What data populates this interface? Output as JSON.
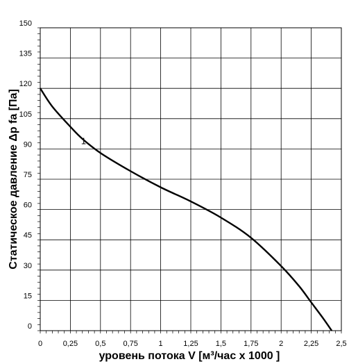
{
  "chart_data": {
    "type": "line",
    "title": "",
    "xlabel": "уровень потока  V [м³/час x 1000 ]",
    "ylabel": "Статическое давление  Δp fa [Па]",
    "xlim": [
      0,
      2.5
    ],
    "ylim": [
      0,
      150
    ],
    "x_ticks": [
      0,
      0.25,
      0.5,
      0.75,
      1,
      1.25,
      1.5,
      1.75,
      2,
      2.25,
      2.5
    ],
    "x_tick_labels": [
      "0",
      "0,25",
      "0,5",
      "0,75",
      "1",
      "1,25",
      "1,5",
      "1,75",
      "2",
      "2,25",
      "2,5"
    ],
    "y_ticks": [
      0,
      15,
      30,
      45,
      60,
      75,
      90,
      105,
      120,
      135,
      150
    ],
    "y_tick_labels": [
      "0",
      "15",
      "30",
      "45",
      "60",
      "75",
      "90",
      "105",
      "120",
      "135",
      "150"
    ],
    "x_minor_step": 0.05,
    "y_minor_step": 3,
    "grid": true,
    "series": [
      {
        "name": "1",
        "color": "#000000",
        "x": [
          0,
          0.1,
          0.25,
          0.35,
          0.5,
          0.75,
          1,
          1.25,
          1.5,
          1.75,
          2,
          2.15,
          2.25,
          2.35,
          2.42
        ],
        "y": [
          120,
          111,
          101,
          95,
          88,
          79,
          71,
          64,
          56,
          46,
          32,
          22,
          14,
          6,
          0
        ]
      }
    ],
    "curve_label": {
      "text": "1",
      "x": 0.42,
      "y": 93
    }
  }
}
